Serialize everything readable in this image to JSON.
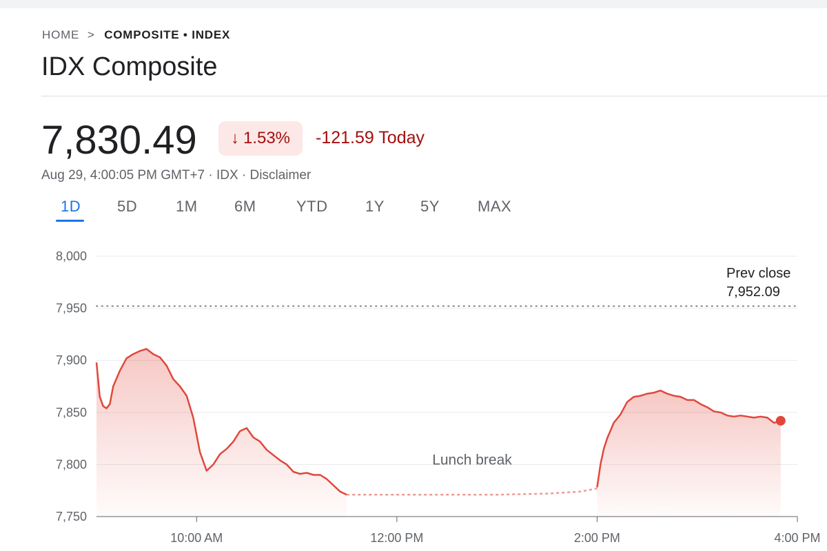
{
  "breadcrumb": {
    "home": "HOME",
    "separator": ">",
    "current": "COMPOSITE • INDEX"
  },
  "title": "IDX Composite",
  "quote": {
    "price": "7,830.49",
    "change_pct": "1.53%",
    "change_arrow": "↓",
    "change_today": "-121.59 Today",
    "meta": "Aug 29, 4:00:05 PM GMT+7 · IDX · Disclaimer"
  },
  "tabs": [
    {
      "label": "1D",
      "active": true
    },
    {
      "label": "5D"
    },
    {
      "label": "1M"
    },
    {
      "label": "6M"
    },
    {
      "label": "YTD"
    },
    {
      "label": "1Y"
    },
    {
      "label": "5Y"
    },
    {
      "label": "MAX"
    }
  ],
  "colors": {
    "line": "#e0473b",
    "negative_text": "#a50e0e",
    "badge_bg": "#fce8e6",
    "active_tab": "#1a73e8"
  },
  "chart_data": {
    "type": "line",
    "ylim": [
      7750,
      8000
    ],
    "y_ticks": [
      8000,
      7950,
      7900,
      7850,
      7800,
      7750
    ],
    "y_tick_labels": [
      "8,000",
      "7,950",
      "7,900",
      "7,850",
      "7,800",
      "7,750"
    ],
    "x_ticks": [
      "10:00 AM",
      "12:00 PM",
      "2:00 PM",
      "4:00 PM"
    ],
    "prev_close": {
      "label": "Prev close",
      "value_label": "7,952.09",
      "value": 7952.09
    },
    "annotation": "Lunch break",
    "series": [
      {
        "session": "morning",
        "x": [
          "09:00",
          "09:02",
          "09:04",
          "09:06",
          "09:08",
          "09:10",
          "09:14",
          "09:18",
          "09:22",
          "09:26",
          "09:30",
          "09:34",
          "09:38",
          "09:42",
          "09:46",
          "09:50",
          "09:54",
          "09:58",
          "10:02",
          "10:06",
          "10:10",
          "10:14",
          "10:18",
          "10:22",
          "10:26",
          "10:30",
          "10:34",
          "10:38",
          "10:42",
          "10:46",
          "10:50",
          "10:54",
          "10:58",
          "11:02",
          "11:06",
          "11:10",
          "11:14",
          "11:18",
          "11:22",
          "11:26",
          "11:30"
        ],
        "y": [
          7898,
          7865,
          7856,
          7854,
          7858,
          7875,
          7890,
          7902,
          7906,
          7909,
          7911,
          7906,
          7903,
          7895,
          7882,
          7875,
          7866,
          7845,
          7812,
          7794,
          7800,
          7810,
          7815,
          7822,
          7832,
          7835,
          7826,
          7822,
          7814,
          7809,
          7804,
          7800,
          7793,
          7791,
          7792,
          7790,
          7790,
          7786,
          7780,
          7774,
          7771
        ]
      },
      {
        "session": "lunch",
        "x": [
          "11:30",
          "12:00",
          "12:30",
          "13:00",
          "13:30",
          "13:50",
          "14:00"
        ],
        "y": [
          7771,
          7771,
          7771,
          7771,
          7772,
          7774,
          7777
        ]
      },
      {
        "session": "afternoon",
        "x": [
          "14:00",
          "14:02",
          "14:04",
          "14:06",
          "14:10",
          "14:14",
          "14:18",
          "14:22",
          "14:26",
          "14:30",
          "14:34",
          "14:38",
          "14:42",
          "14:46",
          "14:50",
          "14:54",
          "14:58",
          "15:02",
          "15:06",
          "15:10",
          "15:14",
          "15:18",
          "15:22",
          "15:26",
          "15:30",
          "15:34",
          "15:38",
          "15:42",
          "15:46",
          "15:50"
        ],
        "y": [
          7778,
          7800,
          7815,
          7825,
          7840,
          7848,
          7860,
          7865,
          7866,
          7868,
          7869,
          7871,
          7868,
          7866,
          7865,
          7862,
          7862,
          7858,
          7855,
          7851,
          7850,
          7847,
          7846,
          7847,
          7846,
          7845,
          7846,
          7845,
          7840,
          7842
        ]
      }
    ],
    "last_point": {
      "x": "15:50",
      "y": 7842
    }
  }
}
